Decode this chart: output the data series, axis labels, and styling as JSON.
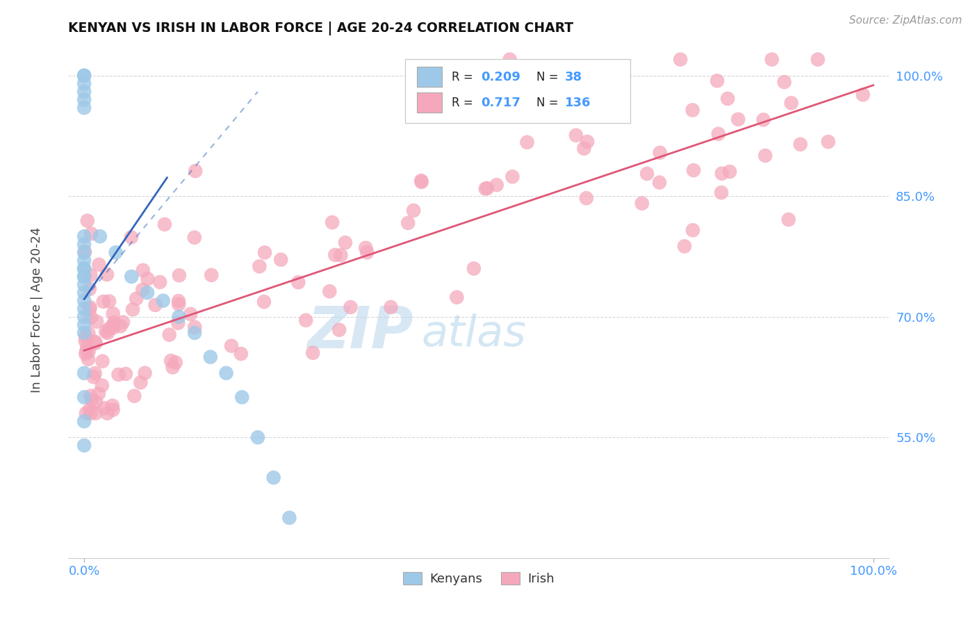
{
  "title": "KENYAN VS IRISH IN LABOR FORCE | AGE 20-24 CORRELATION CHART",
  "source": "Source: ZipAtlas.com",
  "ylabel": "In Labor Force | Age 20-24",
  "xlim": [
    -0.02,
    1.02
  ],
  "ylim": [
    0.4,
    1.04
  ],
  "xtick_positions": [
    0.0,
    1.0
  ],
  "xtick_labels": [
    "0.0%",
    "100.0%"
  ],
  "ytick_positions": [
    0.55,
    0.7,
    0.85,
    1.0
  ],
  "ytick_labels": [
    "55.0%",
    "70.0%",
    "85.0%",
    "100.0%"
  ],
  "legend_r_kenyan": "0.209",
  "legend_n_kenyan": "38",
  "legend_r_irish": "0.717",
  "legend_n_irish": "136",
  "kenyan_color": "#9ec8e8",
  "irish_color": "#f5a8bc",
  "kenyan_line_color": "#3366bb",
  "irish_line_color": "#e05575",
  "bg_color": "#ffffff",
  "tick_color": "#4499ff",
  "title_color": "#111111",
  "ylabel_color": "#444444",
  "source_color": "#999999",
  "watermark_zip_color": "#c5dff0",
  "watermark_atlas_color": "#b8d0e8",
  "grid_color": "#bbbbbb"
}
